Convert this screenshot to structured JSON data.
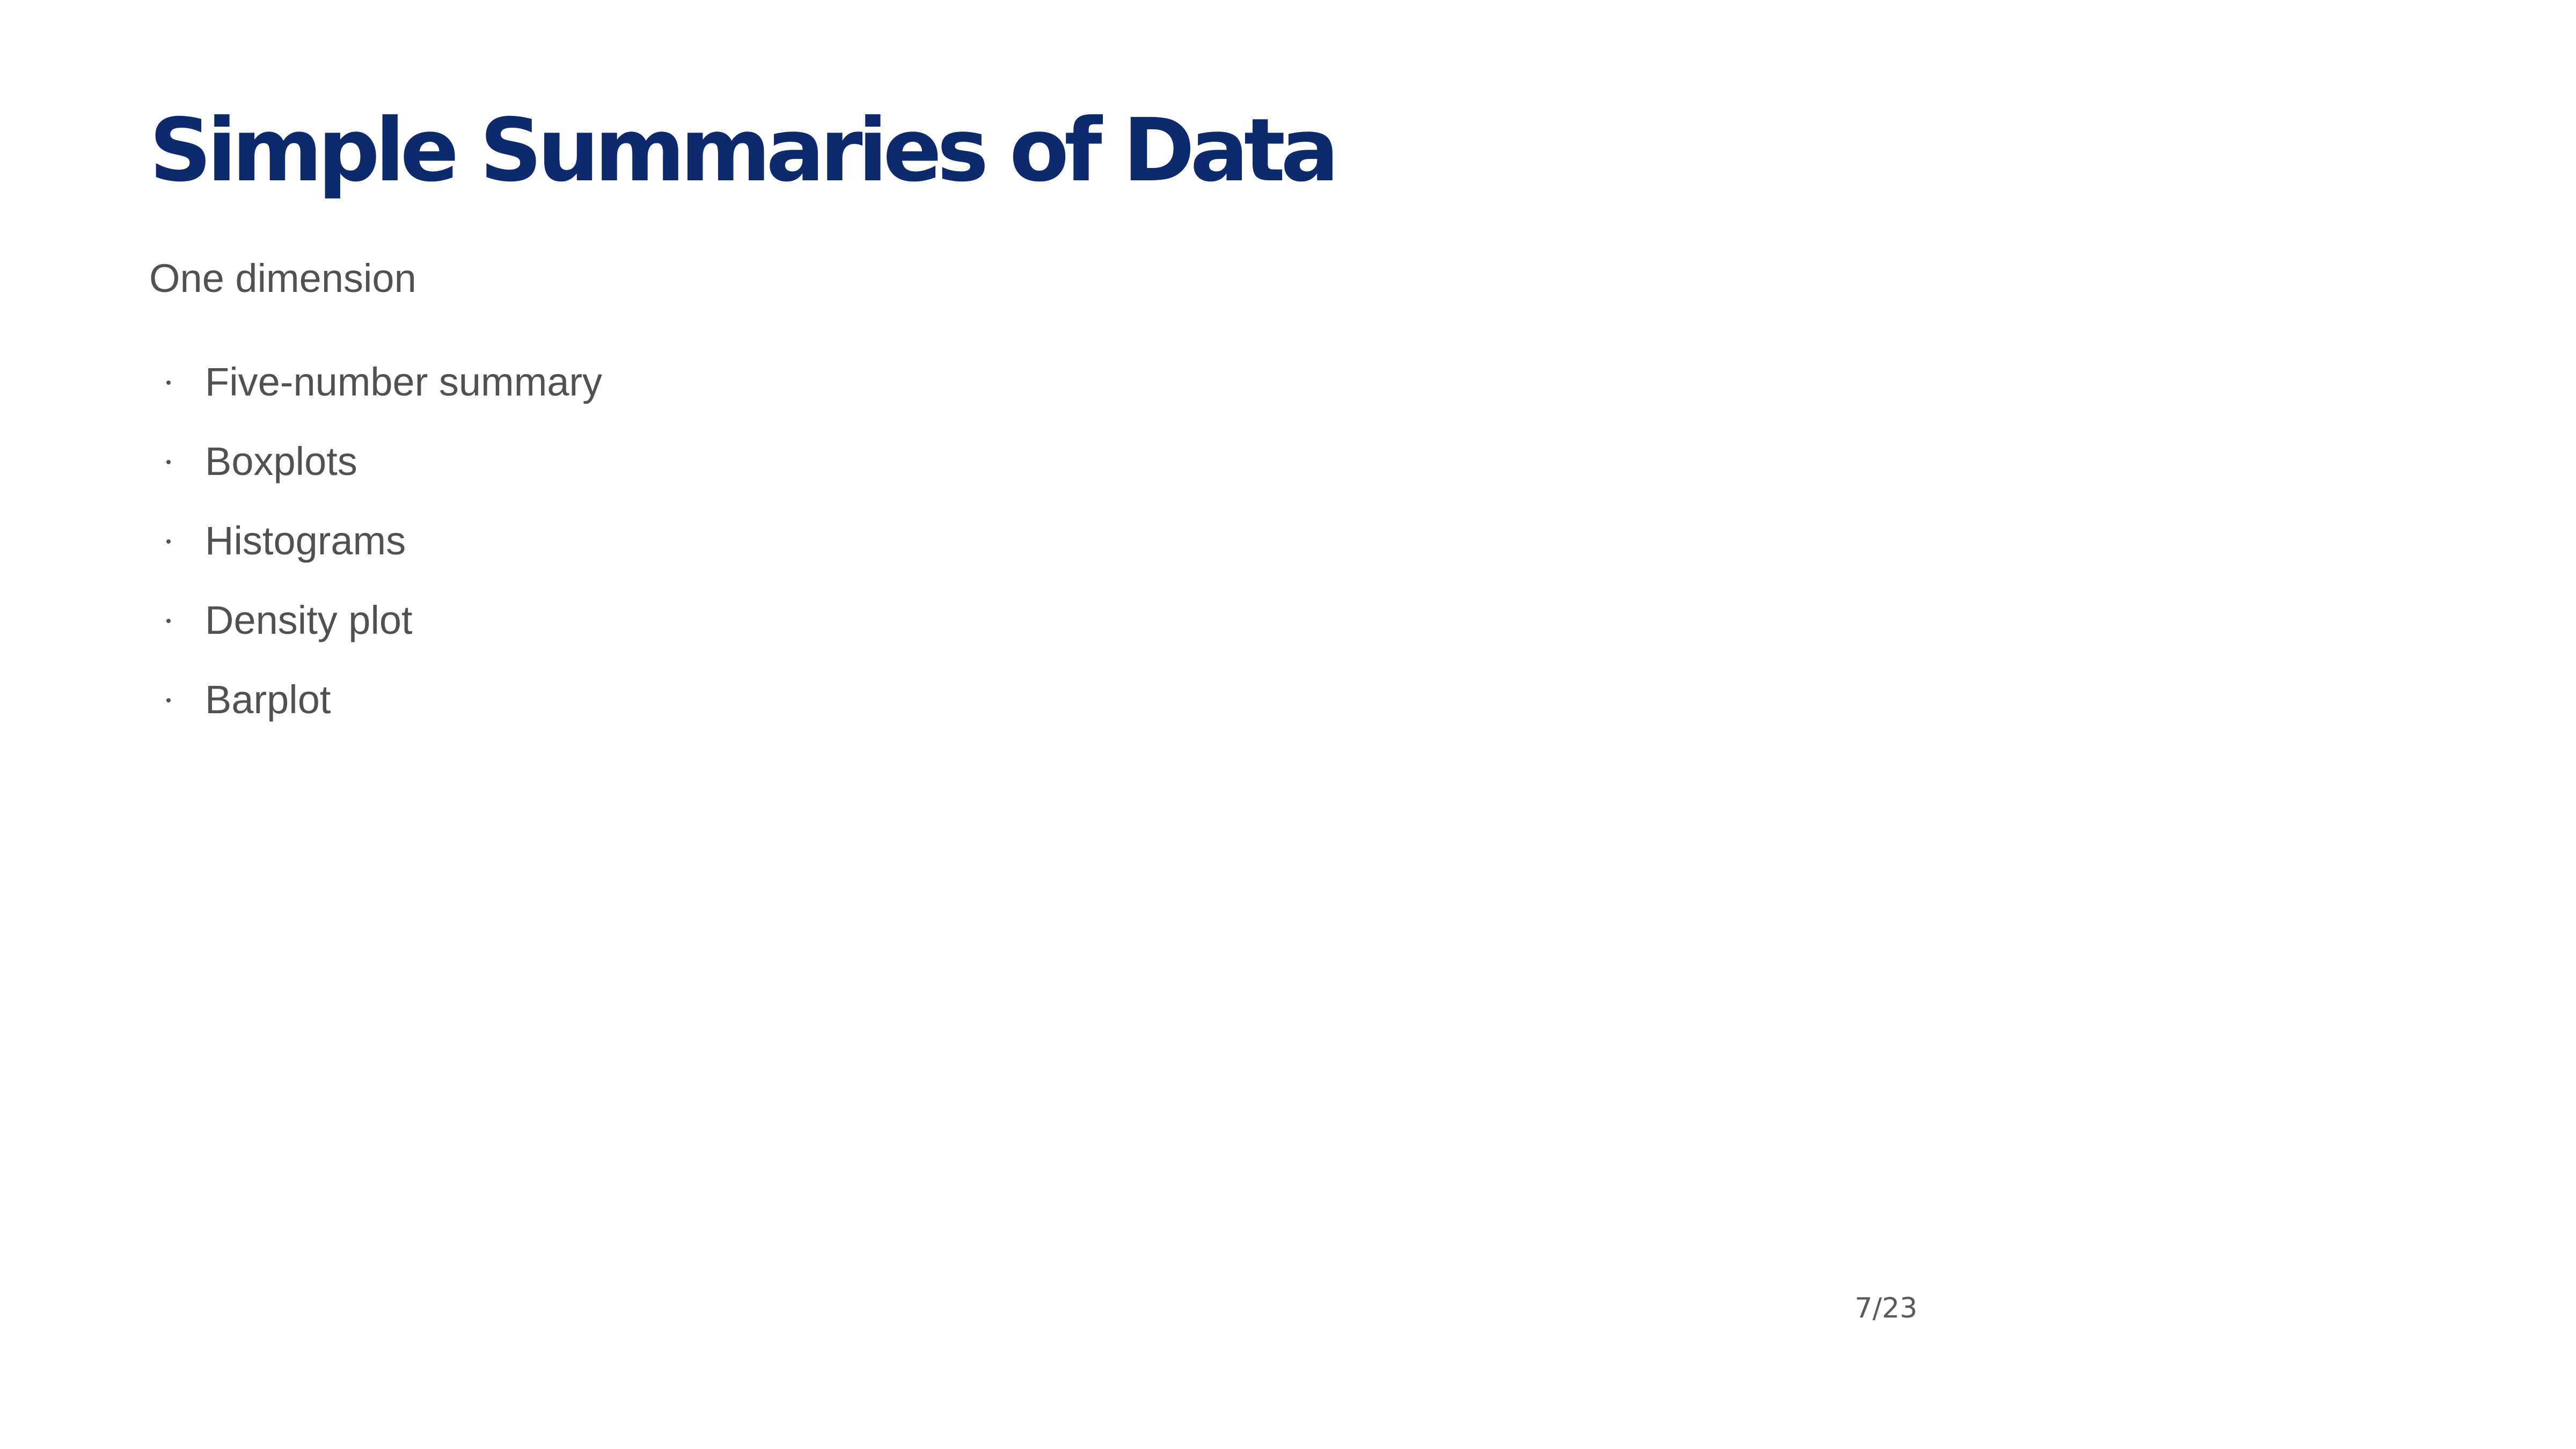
{
  "slide": {
    "title": "Simple Summaries of Data",
    "subtitle": "One dimension",
    "bullets": [
      "Five-number summary",
      "Boxplots",
      "Histograms",
      "Density plot",
      "Barplot"
    ],
    "page_number": "7/23"
  },
  "colors": {
    "title": "#0d2a6e",
    "body_text": "#515151",
    "background": "#ffffff"
  }
}
